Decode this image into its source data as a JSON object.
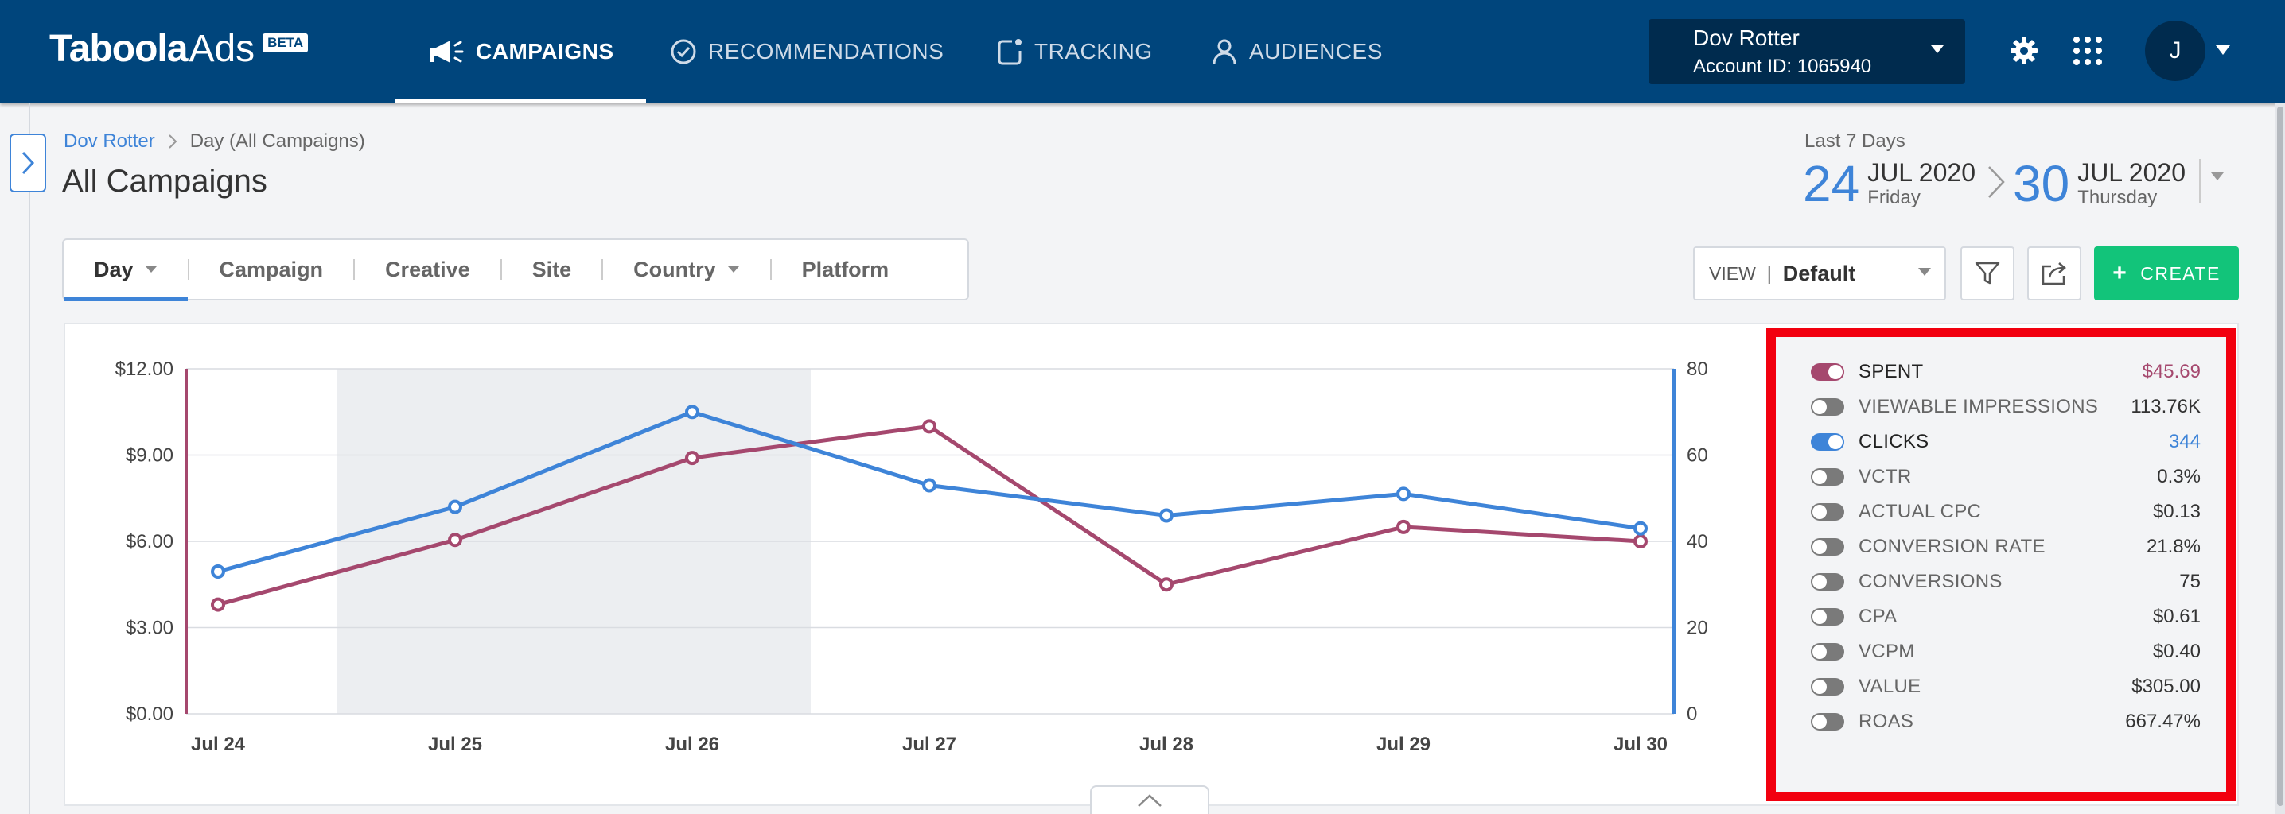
{
  "header": {
    "logo": {
      "main": "Taboola",
      "ads": "Ads",
      "badge": "BETA"
    },
    "nav": [
      {
        "label": "CAMPAIGNS",
        "icon": "megaphone-icon",
        "active": true
      },
      {
        "label": "RECOMMENDATIONS",
        "icon": "check-circle-icon",
        "active": false
      },
      {
        "label": "TRACKING",
        "icon": "tracking-icon",
        "active": false
      },
      {
        "label": "AUDIENCES",
        "icon": "person-icon",
        "active": false
      }
    ],
    "account": {
      "name": "Dov Rotter",
      "id_text": "Account ID: 1065940"
    },
    "avatar_initial": "J",
    "colors": {
      "bar": "#00457c",
      "account_box": "#002b4e"
    }
  },
  "breadcrumb": {
    "link": "Dov Rotter",
    "current": "Day (All Campaigns)"
  },
  "page_title": "All Campaigns",
  "date_range": {
    "label": "Last 7 Days",
    "start": {
      "day": "24",
      "month_year": "JUL 2020",
      "weekday": "Friday"
    },
    "end": {
      "day": "30",
      "month_year": "JUL 2020",
      "weekday": "Thursday"
    }
  },
  "tabs": [
    {
      "label": "Day",
      "dropdown": true,
      "active": true
    },
    {
      "label": "Campaign",
      "dropdown": false,
      "active": false
    },
    {
      "label": "Creative",
      "dropdown": false,
      "active": false
    },
    {
      "label": "Site",
      "dropdown": false,
      "active": false
    },
    {
      "label": "Country",
      "dropdown": true,
      "active": false
    },
    {
      "label": "Platform",
      "dropdown": false,
      "active": false
    }
  ],
  "toolbar": {
    "view_label": "VIEW",
    "view_value": "Default",
    "create_label": "CREATE",
    "colors": {
      "create": "#12c47a"
    }
  },
  "chart_data": {
    "type": "line",
    "categories": [
      "Jul 24",
      "Jul 25",
      "Jul 26",
      "Jul 27",
      "Jul 28",
      "Jul 29",
      "Jul 30"
    ],
    "left_axis": {
      "ticks": [
        "$0.00",
        "$3.00",
        "$6.00",
        "$9.00",
        "$12.00"
      ],
      "ylim": [
        0,
        12
      ]
    },
    "right_axis": {
      "ticks": [
        "0",
        "20",
        "40",
        "60",
        "80"
      ],
      "ylim": [
        0,
        80
      ]
    },
    "highlight_range": [
      "Jul 25",
      "Jul 26"
    ],
    "series": [
      {
        "name": "SPENT",
        "axis": "left",
        "color": "#a5486e",
        "values": [
          3.8,
          6.05,
          8.9,
          10.0,
          4.5,
          6.5,
          6.0
        ]
      },
      {
        "name": "CLICKS",
        "axis": "right",
        "color": "#3e84d8",
        "values": [
          33,
          48,
          70,
          53,
          46,
          51,
          43
        ]
      }
    ],
    "grid": true
  },
  "metrics": [
    {
      "label": "SPENT",
      "value": "$45.69",
      "on": true,
      "color": "#a5486e"
    },
    {
      "label": "VIEWABLE IMPRESSIONS",
      "value": "113.76K",
      "on": false,
      "color": "#333333"
    },
    {
      "label": "CLICKS",
      "value": "344",
      "on": true,
      "color": "#3e84d8"
    },
    {
      "label": "VCTR",
      "value": "0.3%",
      "on": false,
      "color": "#333333"
    },
    {
      "label": "ACTUAL CPC",
      "value": "$0.13",
      "on": false,
      "color": "#333333"
    },
    {
      "label": "CONVERSION RATE",
      "value": "21.8%",
      "on": false,
      "color": "#333333"
    },
    {
      "label": "CONVERSIONS",
      "value": "75",
      "on": false,
      "color": "#333333"
    },
    {
      "label": "CPA",
      "value": "$0.61",
      "on": false,
      "color": "#333333"
    },
    {
      "label": "VCPM",
      "value": "$0.40",
      "on": false,
      "color": "#333333"
    },
    {
      "label": "VALUE",
      "value": "$305.00",
      "on": false,
      "color": "#333333"
    },
    {
      "label": "ROAS",
      "value": "667.47%",
      "on": false,
      "color": "#333333"
    }
  ],
  "metrics_highlight_color": "#f2000f"
}
